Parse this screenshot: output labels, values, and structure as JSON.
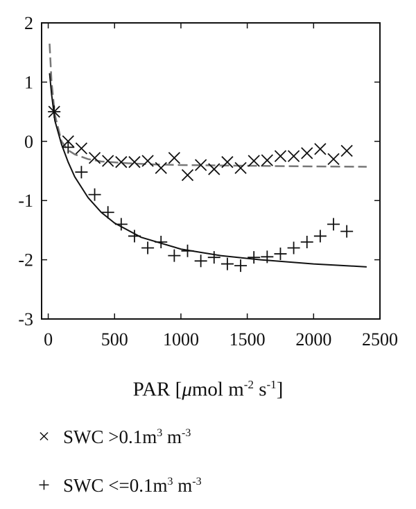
{
  "chart_data": {
    "type": "scatter",
    "title": "",
    "xlim": [
      -50,
      2500
    ],
    "ylim": [
      -3,
      2
    ],
    "x_ticks": [
      0,
      500,
      1000,
      1500,
      2000,
      2500
    ],
    "y_ticks": [
      -3,
      -2,
      -1,
      0,
      1,
      2
    ],
    "grid": false,
    "xlabel": {
      "base": "PAR [",
      "mu": "μ",
      "mid": "mol m",
      "exp1": "-2",
      "mid2": " s",
      "exp2": "-1",
      "end": "]"
    },
    "series": [
      {
        "marker": "x",
        "legend": {
          "symbol": "×",
          "prefix": "SWC >0.1m",
          "exp1": "3",
          "mid": " m",
          "exp2": "-3"
        },
        "x": [
          45,
          150,
          250,
          350,
          450,
          550,
          650,
          750,
          850,
          950,
          1050,
          1150,
          1250,
          1350,
          1450,
          1550,
          1650,
          1750,
          1850,
          1950,
          2050,
          2150,
          2250
        ],
        "y": [
          0.5,
          0.0,
          -0.12,
          -0.28,
          -0.33,
          -0.35,
          -0.35,
          -0.33,
          -0.45,
          -0.28,
          -0.57,
          -0.4,
          -0.47,
          -0.35,
          -0.45,
          -0.33,
          -0.32,
          -0.25,
          -0.25,
          -0.2,
          -0.13,
          -0.3,
          -0.16
        ],
        "fit": {
          "style": "dashed",
          "x": [
            10,
            25,
            50,
            100,
            150,
            200,
            300,
            400,
            600,
            800,
            1000,
            1400,
            1800,
            2400
          ],
          "y": [
            1.65,
            1.0,
            0.45,
            0.0,
            -0.15,
            -0.22,
            -0.3,
            -0.34,
            -0.37,
            -0.39,
            -0.4,
            -0.41,
            -0.42,
            -0.43
          ]
        }
      },
      {
        "marker": "+",
        "legend": {
          "symbol": "+",
          "prefix": "SWC <=0.1m",
          "exp1": "3",
          "mid": " m",
          "exp2": "-3"
        },
        "x": [
          45,
          150,
          250,
          350,
          450,
          550,
          650,
          750,
          850,
          950,
          1050,
          1150,
          1250,
          1350,
          1450,
          1550,
          1650,
          1750,
          1850,
          1950,
          2050,
          2150,
          2250
        ],
        "y": [
          0.5,
          -0.1,
          -0.52,
          -0.9,
          -1.2,
          -1.4,
          -1.6,
          -1.8,
          -1.7,
          -1.93,
          -1.85,
          -2.02,
          -1.96,
          -2.07,
          -2.1,
          -1.96,
          -1.95,
          -1.9,
          -1.8,
          -1.7,
          -1.6,
          -1.4,
          -1.52
        ],
        "fit": {
          "style": "solid",
          "x": [
            10,
            25,
            50,
            100,
            150,
            200,
            300,
            400,
            500,
            700,
            1000,
            1300,
            1600,
            2000,
            2400
          ],
          "y": [
            1.15,
            0.8,
            0.35,
            -0.05,
            -0.35,
            -0.6,
            -0.95,
            -1.2,
            -1.38,
            -1.62,
            -1.82,
            -1.93,
            -2.0,
            -2.07,
            -2.12
          ]
        }
      }
    ]
  }
}
